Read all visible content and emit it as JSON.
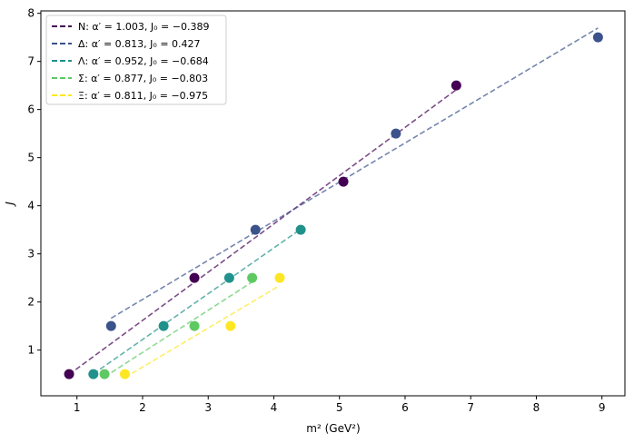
{
  "chart_data": {
    "type": "scatter",
    "title": "",
    "xlabel": "m² (GeV²)",
    "ylabel": "J",
    "xlim": [
      0.45,
      9.35
    ],
    "ylim": [
      0.05,
      8.05
    ],
    "xticks": [
      1,
      2,
      3,
      4,
      5,
      6,
      7,
      8,
      9
    ],
    "yticks": [
      1,
      2,
      3,
      4,
      5,
      6,
      7,
      8
    ],
    "legend_position": "top-left",
    "series": [
      {
        "name": "N",
        "legend_label": "N: α′ = 1.003,    J₀ = −0.389",
        "color": "#440154",
        "alpha": 1.003,
        "J0": -0.389,
        "points": [
          [
            0.88,
            0.5
          ],
          [
            2.79,
            2.5
          ],
          [
            5.06,
            4.5
          ],
          [
            6.78,
            6.5
          ]
        ],
        "fit_range": [
          0.88,
          6.78
        ]
      },
      {
        "name": "Δ",
        "legend_label": "Δ: α′ = 0.813,    J₀ = 0.427",
        "color": "#3b528b",
        "alpha": 0.813,
        "J0": 0.427,
        "points": [
          [
            1.52,
            1.5
          ],
          [
            3.72,
            3.5
          ],
          [
            5.86,
            5.5
          ],
          [
            8.94,
            7.5
          ]
        ],
        "fit_range": [
          1.52,
          8.94
        ]
      },
      {
        "name": "Λ",
        "legend_label": "Λ: α′ = 0.952,    J₀ = −0.684",
        "color": "#21918c",
        "alpha": 0.952,
        "J0": -0.684,
        "points": [
          [
            1.25,
            0.5
          ],
          [
            2.32,
            1.5
          ],
          [
            3.32,
            2.5
          ],
          [
            4.41,
            3.5
          ]
        ],
        "fit_range": [
          1.25,
          4.41
        ]
      },
      {
        "name": "Σ",
        "legend_label": "Σ: α′ = 0.877,    J₀ = −0.803",
        "color": "#5ec962",
        "alpha": 0.877,
        "J0": -0.803,
        "points": [
          [
            1.42,
            0.5
          ],
          [
            2.79,
            1.5
          ],
          [
            3.67,
            2.5
          ]
        ],
        "fit_range": [
          1.42,
          3.67
        ]
      },
      {
        "name": "Ξ",
        "legend_label": "Ξ: α′ = 0.811,    J₀ = −0.975",
        "color": "#fde725",
        "alpha": 0.811,
        "J0": -0.975,
        "points": [
          [
            1.73,
            0.5
          ],
          [
            3.34,
            1.5
          ],
          [
            4.09,
            2.5
          ]
        ],
        "fit_range": [
          1.73,
          4.09
        ]
      }
    ]
  }
}
